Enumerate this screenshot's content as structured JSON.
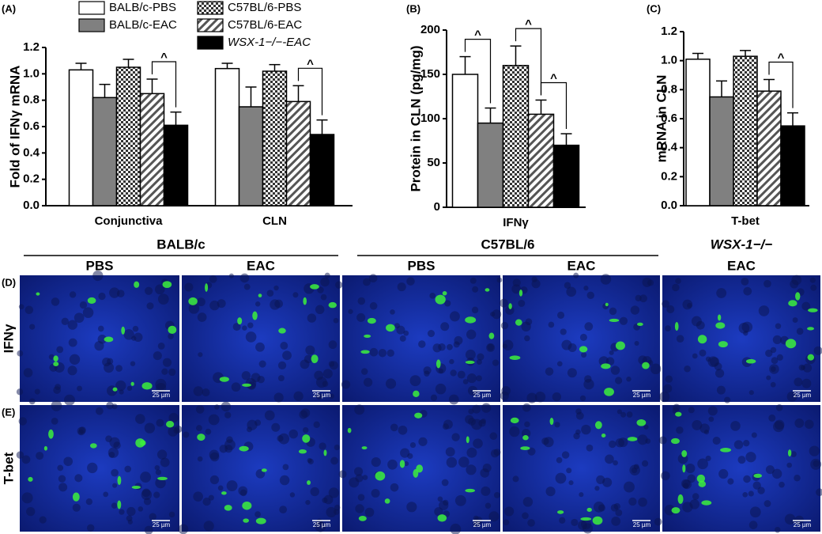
{
  "panel_labels": [
    "(A)",
    "(B)",
    "(C)",
    "(D)",
    "(E)"
  ],
  "legend": [
    {
      "name": "BALB/c-PBS",
      "fill": "#ffffff"
    },
    {
      "name": "BALB/c-EAC",
      "fill": "#808080"
    },
    {
      "name": "C57BL/6-PBS",
      "fill": "checker"
    },
    {
      "name": "C57BL/6-EAC",
      "fill": "hatch"
    },
    {
      "name": "WSX-1−/−-EAC",
      "fill": "#000000"
    }
  ],
  "chart_data": [
    {
      "type": "bar",
      "ylabel": "Fold of IFNγ mRNA",
      "categories": [
        "Conjunctiva",
        "CLN"
      ],
      "ylim": [
        0,
        1.2
      ],
      "yticks": [
        {
          "value": 0,
          "label": "0.0"
        },
        0.2,
        0.4,
        0.6,
        0.8,
        {
          "value": 1,
          "label": "1.0"
        },
        1.2
      ],
      "series": [
        {
          "values": [
            1.03,
            1.04
          ],
          "errors": [
            0.05,
            0.04
          ]
        },
        {
          "values": [
            0.82,
            0.75
          ],
          "errors": [
            0.1,
            0.15
          ]
        },
        {
          "values": [
            1.05,
            1.02
          ],
          "errors": [
            0.06,
            0.05
          ]
        },
        {
          "values": [
            0.85,
            0.79
          ],
          "errors": [
            0.11,
            0.12
          ]
        },
        {
          "values": [
            0.61,
            0.54
          ],
          "errors": [
            0.1,
            0.11
          ]
        }
      ],
      "brackets": [
        {
          "category": 0,
          "from": 3,
          "to": 4,
          "label": "^"
        },
        {
          "category": 1,
          "from": 3,
          "to": 4,
          "label": "^"
        }
      ]
    },
    {
      "type": "bar",
      "ylabel": "Protein in CLN (pg/mg)",
      "categories": [
        "IFNγ"
      ],
      "ylim": [
        0,
        200
      ],
      "yticks": [
        0,
        50,
        100,
        150,
        200
      ],
      "series": [
        {
          "values": [
            150
          ],
          "errors": [
            20
          ]
        },
        {
          "values": [
            95
          ],
          "errors": [
            17
          ]
        },
        {
          "values": [
            160
          ],
          "errors": [
            22
          ]
        },
        {
          "values": [
            105
          ],
          "errors": [
            16
          ]
        },
        {
          "values": [
            70
          ],
          "errors": [
            13
          ]
        }
      ],
      "brackets": [
        {
          "category": 0,
          "from": 0,
          "to": 1,
          "label": "^"
        },
        {
          "category": 0,
          "from": 2,
          "to": 3,
          "label": "^"
        },
        {
          "category": 0,
          "from": 3,
          "to": 4,
          "label": "^"
        }
      ]
    },
    {
      "type": "bar",
      "ylabel": "mRNA in CLN",
      "categories": [
        "T-bet"
      ],
      "ylim": [
        0,
        1.2
      ],
      "yticks": [
        {
          "value": 0,
          "label": "0.0"
        },
        0.2,
        0.4,
        0.6,
        0.8,
        {
          "value": 1,
          "label": "1.0"
        },
        1.2
      ],
      "series": [
        {
          "values": [
            1.01
          ],
          "errors": [
            0.04
          ]
        },
        {
          "values": [
            0.75
          ],
          "errors": [
            0.11
          ]
        },
        {
          "values": [
            1.03
          ],
          "errors": [
            0.04
          ]
        },
        {
          "values": [
            0.79
          ],
          "errors": [
            0.08
          ]
        },
        {
          "values": [
            0.55
          ],
          "errors": [
            0.09
          ]
        }
      ],
      "brackets": [
        {
          "category": 0,
          "from": 3,
          "to": 4,
          "label": "^"
        }
      ]
    }
  ],
  "images": {
    "groups": [
      "BALB/c",
      "C57BL/6",
      "WSX-1−/−"
    ],
    "columns": [
      "PBS",
      "EAC",
      "PBS",
      "EAC",
      "EAC"
    ],
    "rows": [
      "IFNγ",
      "T-bet"
    ],
    "scale_bar": "25 µm"
  }
}
